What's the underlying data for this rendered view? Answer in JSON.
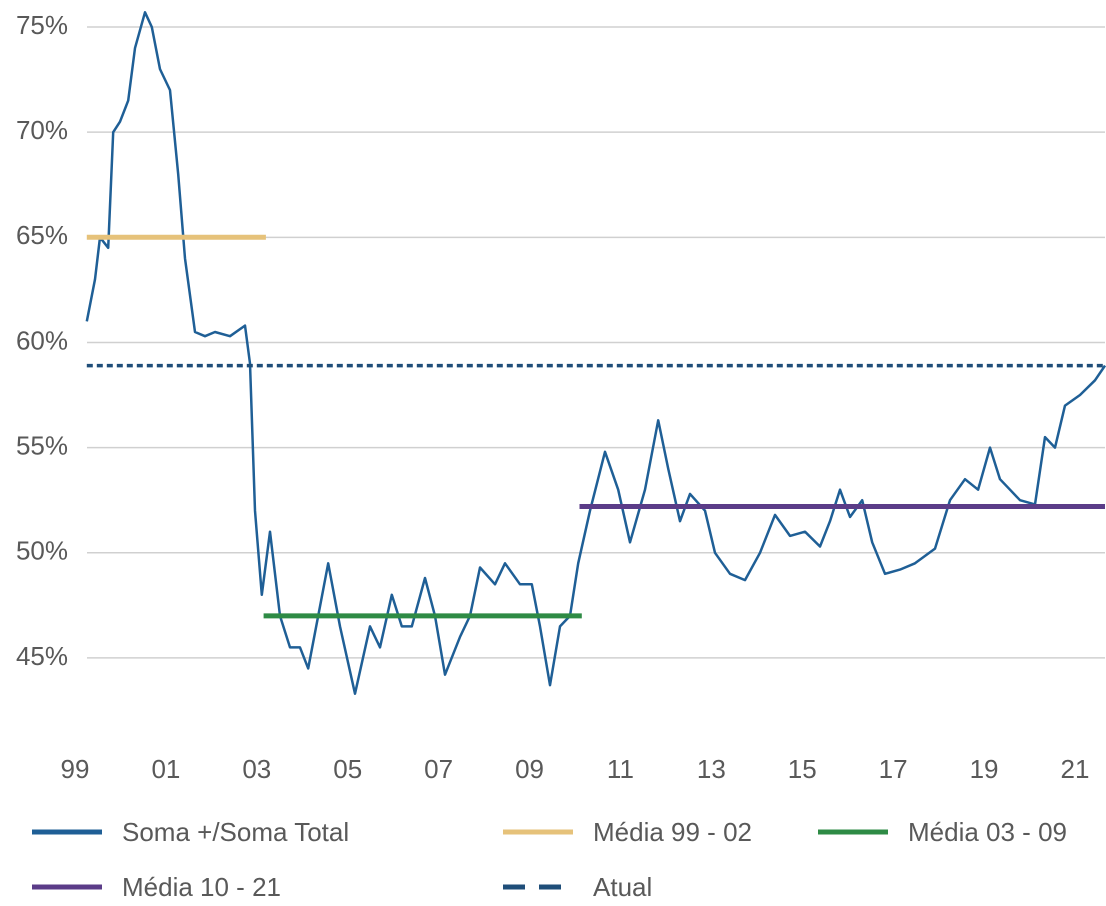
{
  "chart_data": {
    "type": "line",
    "xlim": [
      1999,
      2021.65
    ],
    "xticks": [
      {
        "value": 1999,
        "label": "99"
      },
      {
        "value": 2001,
        "label": "01"
      },
      {
        "value": 2003,
        "label": "03"
      },
      {
        "value": 2005,
        "label": "05"
      },
      {
        "value": 2007,
        "label": "07"
      },
      {
        "value": 2009,
        "label": "09"
      },
      {
        "value": 2011,
        "label": "11"
      },
      {
        "value": 2013,
        "label": "13"
      },
      {
        "value": 2015,
        "label": "15"
      },
      {
        "value": 2017,
        "label": "17"
      },
      {
        "value": 2019,
        "label": "19"
      },
      {
        "value": 2021,
        "label": "21"
      }
    ],
    "ylim": [
      42,
      76
    ],
    "yticks": [
      {
        "value": 45,
        "label": "45%"
      },
      {
        "value": 50,
        "label": "50%"
      },
      {
        "value": 55,
        "label": "55%"
      },
      {
        "value": 60,
        "label": "60%"
      },
      {
        "value": 65,
        "label": "65%"
      },
      {
        "value": 70,
        "label": "70%"
      },
      {
        "value": 75,
        "label": "75%"
      }
    ],
    "grid": true,
    "legend": "bottom",
    "series": [
      {
        "name": "Soma +/Soma Total",
        "color": "#1f5f96",
        "width": 2.5,
        "x": [
          1999.26,
          1999.44,
          1999.55,
          1999.73,
          1999.84,
          1999.99,
          2000.17,
          2000.32,
          2000.54,
          2000.69,
          2000.87,
          2001.09,
          2001.27,
          2001.42,
          2001.64,
          2001.86,
          2002.08,
          2002.41,
          2002.74,
          2002.85,
          2002.96,
          2003.11,
          2003.29,
          2003.51,
          2003.73,
          2003.95,
          2004.13,
          2004.35,
          2004.57,
          2004.83,
          2005.16,
          2005.49,
          2005.71,
          2005.97,
          2006.19,
          2006.41,
          2006.7,
          2006.92,
          2007.14,
          2007.47,
          2007.69,
          2007.91,
          2008.24,
          2008.46,
          2008.79,
          2009.05,
          2009.23,
          2009.45,
          2009.67,
          2009.89,
          2010.07,
          2010.33,
          2010.66,
          2010.95,
          2011.21,
          2011.54,
          2011.83,
          2012.05,
          2012.31,
          2012.53,
          2012.86,
          2013.08,
          2013.41,
          2013.74,
          2014.07,
          2014.4,
          2014.73,
          2015.06,
          2015.39,
          2015.61,
          2015.83,
          2016.05,
          2016.32,
          2016.54,
          2016.82,
          2017.15,
          2017.48,
          2017.92,
          2018.25,
          2018.58,
          2018.87,
          2019.13,
          2019.35,
          2019.57,
          2019.79,
          2020.12,
          2020.34,
          2020.56,
          2020.78,
          2021.11,
          2021.44,
          2021.66
        ],
        "values": [
          61,
          63,
          65,
          64.5,
          70,
          70.5,
          71.5,
          74,
          75.7,
          75,
          73,
          72,
          68,
          64,
          60.5,
          60.3,
          60.5,
          60.3,
          60.8,
          59,
          52,
          48,
          51,
          47,
          45.5,
          45.5,
          44.5,
          47,
          49.5,
          46.5,
          43.3,
          46.5,
          45.5,
          48,
          46.5,
          46.5,
          48.8,
          47,
          44.2,
          46,
          47,
          49.3,
          48.5,
          49.5,
          48.5,
          48.5,
          46.5,
          43.7,
          46.5,
          47,
          49.5,
          52,
          54.8,
          53,
          50.5,
          53,
          56.3,
          54,
          51.5,
          52.8,
          52,
          50,
          49,
          48.7,
          50,
          51.8,
          50.8,
          51,
          50.3,
          51.5,
          53,
          51.7,
          52.5,
          50.5,
          49,
          49.2,
          49.5,
          50.2,
          52.5,
          53.5,
          53,
          55,
          53.5,
          53,
          52.5,
          52.3,
          55.5,
          55,
          57,
          57.5,
          58.2,
          58.9
        ]
      },
      {
        "name": "Média 99 - 02",
        "color": "#e6c27a",
        "width": 5,
        "x": [
          1999.26,
          2003.2
        ],
        "values": [
          65,
          65
        ]
      },
      {
        "name": "Média 03 - 09",
        "color": "#2e8b45",
        "width": 5,
        "x": [
          2003.15,
          2010.15
        ],
        "values": [
          47,
          47
        ]
      },
      {
        "name": "Média 10 - 21",
        "color": "#5b3c88",
        "width": 5,
        "x": [
          2010.1,
          2021.66
        ],
        "values": [
          52.2,
          52.2
        ]
      },
      {
        "name": "Atual",
        "color": "#1f4e79",
        "width": 3.5,
        "dash": true,
        "x": [
          1999.26,
          2021.66
        ],
        "values": [
          58.9,
          58.9
        ]
      }
    ]
  }
}
